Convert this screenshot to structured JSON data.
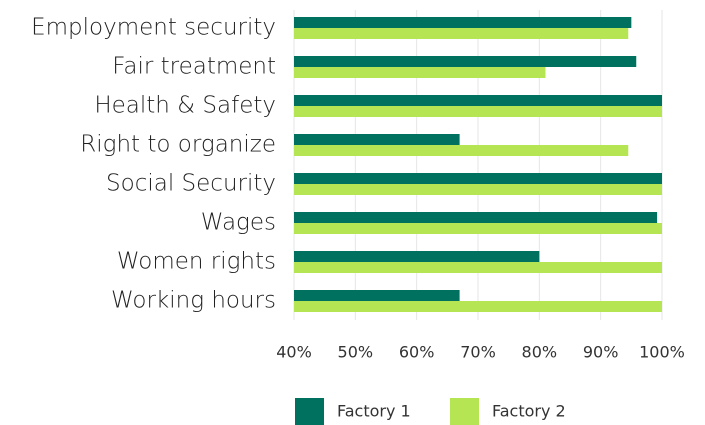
{
  "chart_data": {
    "type": "hbar",
    "categories": [
      "Employment security",
      "Fair treatment",
      "Health & Safety",
      "Right to organize",
      "Social Security",
      "Wages",
      "Women rights",
      "Working hours"
    ],
    "series": [
      {
        "name": "Factory 1",
        "color": "#00705f",
        "values": [
          95,
          95.8,
          100,
          67,
          100,
          99.2,
          80,
          67
        ]
      },
      {
        "name": "Factory 2",
        "color": "#b6e553",
        "values": [
          94.5,
          81,
          100,
          94.5,
          100,
          100,
          100,
          100
        ]
      }
    ],
    "xlim": [
      40,
      100
    ],
    "xticks": [
      {
        "value": 40,
        "label": "40%"
      },
      {
        "value": 50,
        "label": "50%"
      },
      {
        "value": 60,
        "label": "60%"
      },
      {
        "value": 70,
        "label": "70%"
      },
      {
        "value": 80,
        "label": "80%"
      },
      {
        "value": 90,
        "label": "90%"
      },
      {
        "value": 100,
        "label": "100%"
      }
    ],
    "grid": true,
    "legend": "bottom"
  }
}
